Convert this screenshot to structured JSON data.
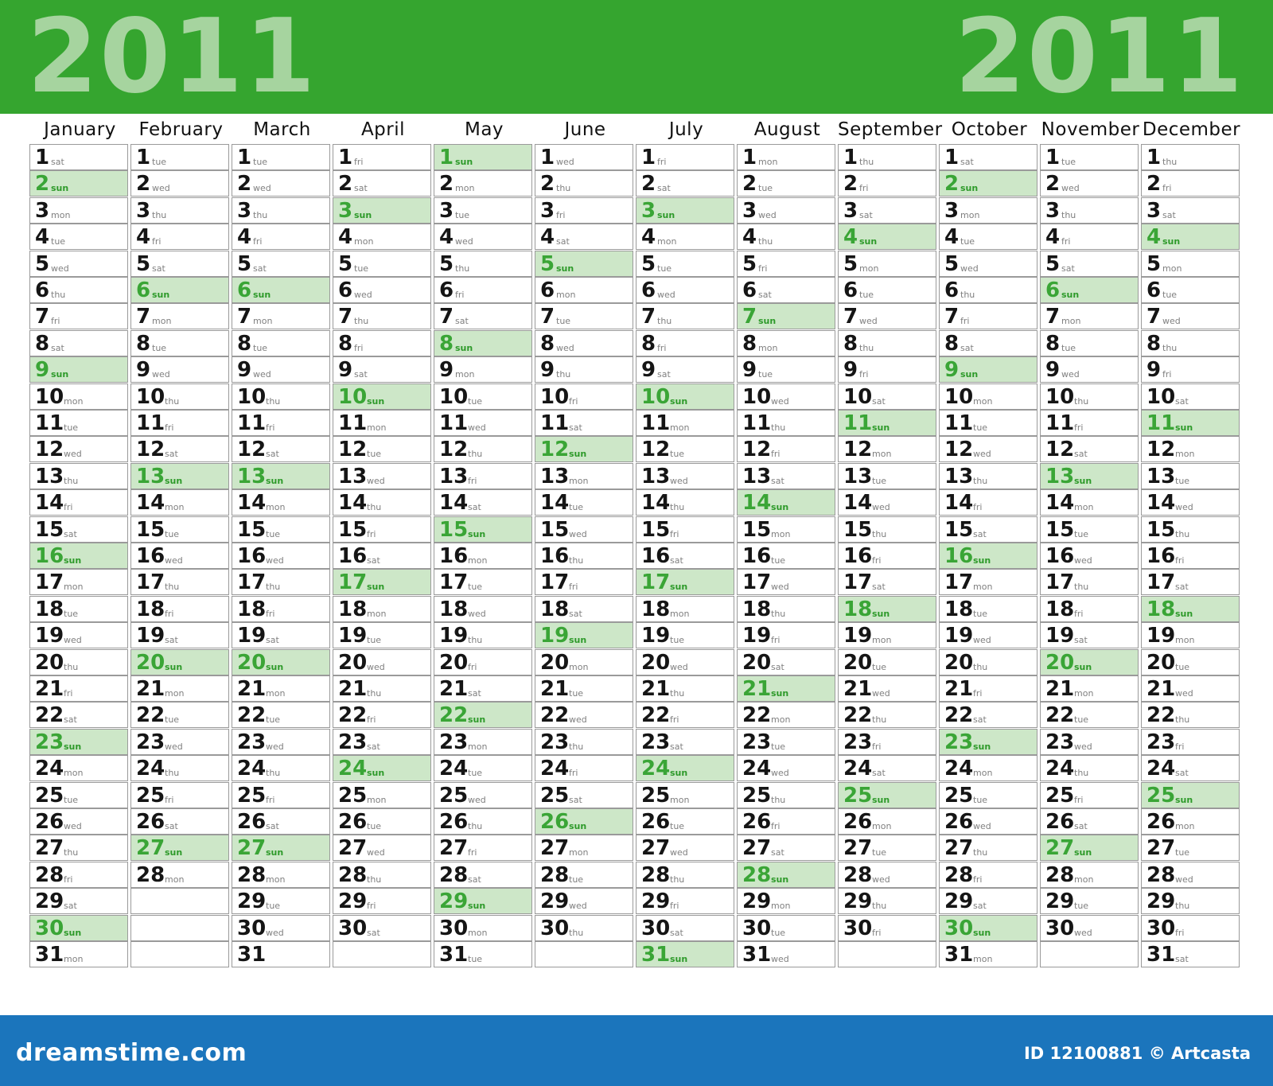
{
  "header": {
    "year_left": "2011",
    "year_right": "2011"
  },
  "months": [
    {
      "name": "January",
      "days": 31,
      "first_weekday": "sat"
    },
    {
      "name": "February",
      "days": 28,
      "first_weekday": "tue"
    },
    {
      "name": "March",
      "days": 31,
      "first_weekday": "tue"
    },
    {
      "name": "April",
      "days": 30,
      "first_weekday": "fri"
    },
    {
      "name": "May",
      "days": 31,
      "first_weekday": "sun"
    },
    {
      "name": "June",
      "days": 30,
      "first_weekday": "wed"
    },
    {
      "name": "July",
      "days": 31,
      "first_weekday": "fri"
    },
    {
      "name": "August",
      "days": 31,
      "first_weekday": "mon"
    },
    {
      "name": "September",
      "days": 30,
      "first_weekday": "thu"
    },
    {
      "name": "October",
      "days": 31,
      "first_weekday": "sat"
    },
    {
      "name": "November",
      "days": 30,
      "first_weekday": "tue"
    },
    {
      "name": "December",
      "days": 31,
      "first_weekday": "thu"
    }
  ],
  "weekday_abbr": [
    "sun",
    "mon",
    "tue",
    "wed",
    "thu",
    "fri",
    "sat"
  ],
  "exceptions": [
    {
      "month": "March",
      "day": 31,
      "weekday": ""
    },
    {
      "month": "May",
      "day": 31,
      "weekday": "tue"
    }
  ],
  "colors": {
    "header_green": "#35a52f",
    "sunday_fill": "#cde7c8",
    "sunday_text": "#3aa536",
    "footer_blue": "#1b75bc"
  },
  "footer": {
    "brand": "dreamstime.com",
    "credit": "ID 12100881 © Artcasta"
  }
}
